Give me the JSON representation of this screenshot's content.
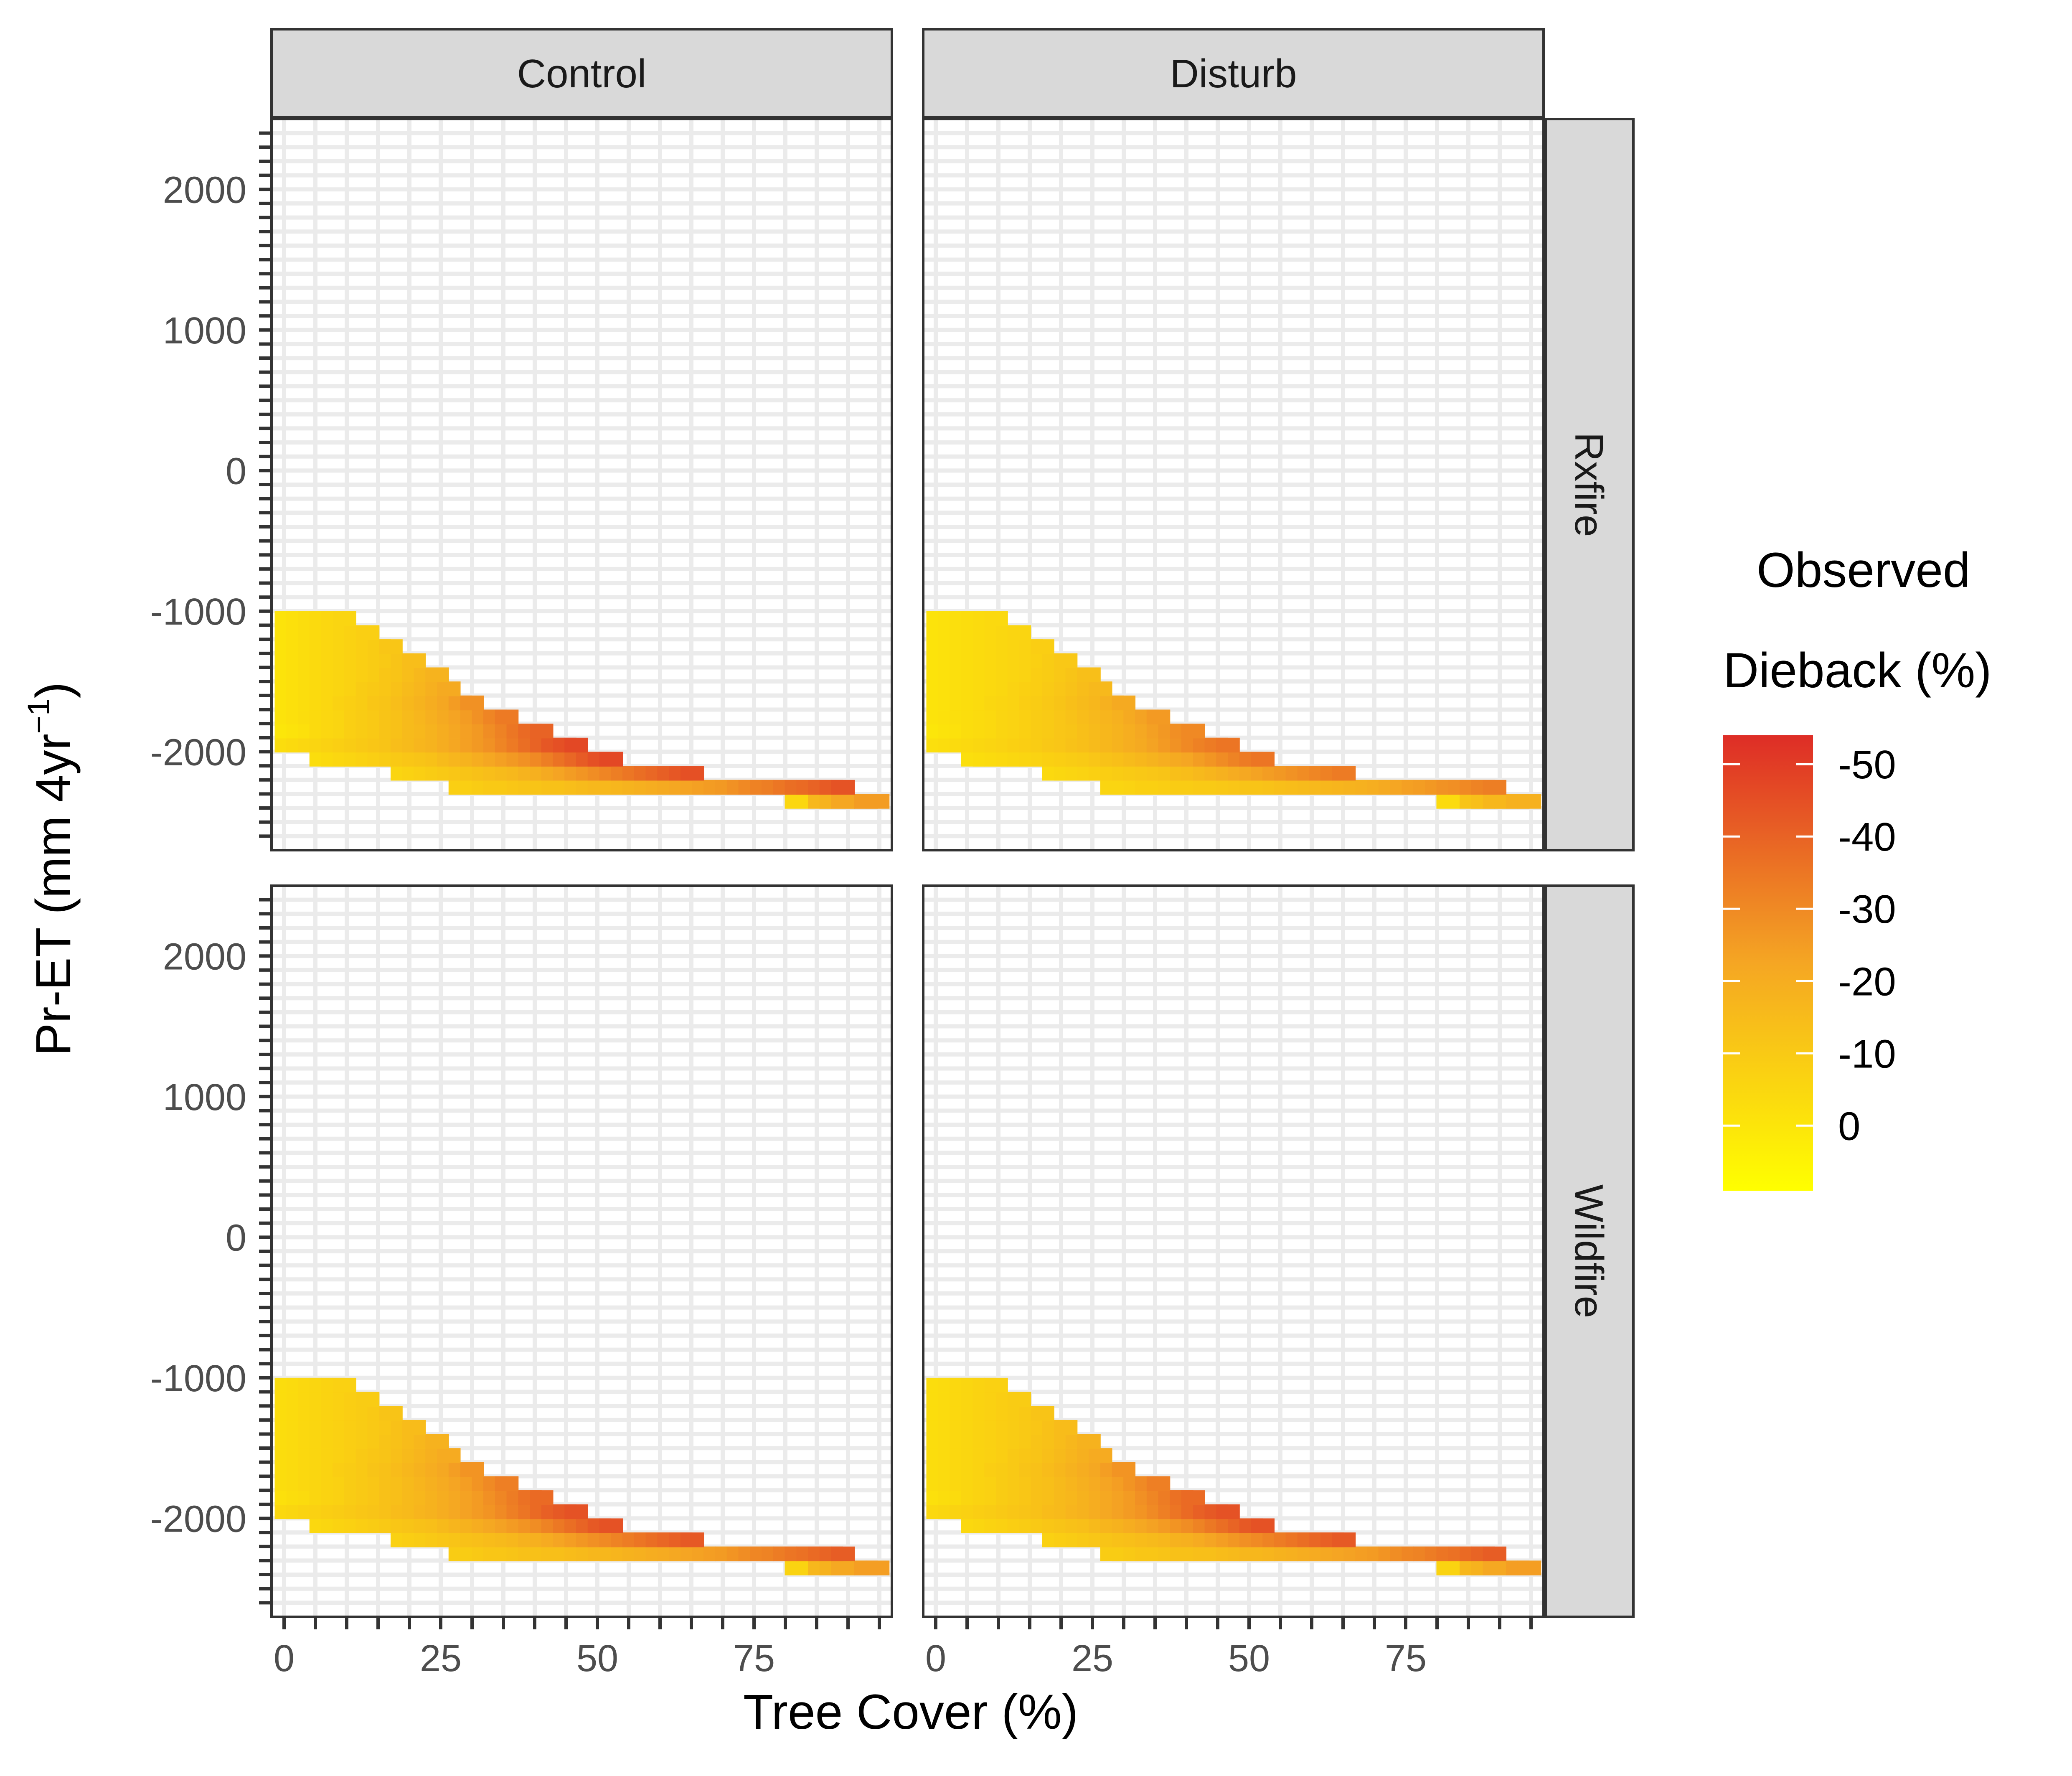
{
  "chart_data": {
    "type": "heatmap",
    "xlabel": "Tree Cover (%)",
    "ylabel": "Pr-ET (mm 4yr",
    "ylabel_sup": "−1",
    "ylabel_close": ")",
    "xlim": [
      -2,
      97
    ],
    "ylim": [
      -2700,
      2500
    ],
    "x_ticks": [
      0,
      25,
      50,
      75
    ],
    "x_tick_labels": [
      "0",
      "25",
      "50",
      "75"
    ],
    "y_ticks": [
      2000,
      1000,
      0,
      -1000,
      -2000
    ],
    "y_tick_labels": [
      "2000",
      "1000",
      "0",
      "-1000",
      "-2000"
    ],
    "x_bin_width": 5,
    "y_bin_width": 200,
    "col_strips": [
      "Control",
      "Disturb"
    ],
    "row_strips": [
      "Rxfire",
      "Wildfire"
    ],
    "legend": {
      "title_line1": "Observed",
      "title_line2": "Dieback (%)",
      "placement": "right",
      "ticks": [
        -50,
        -40,
        -30,
        -20,
        -10,
        0
      ],
      "tick_labels": [
        "-50",
        "-40",
        "-30",
        "-20",
        "-10",
        "0"
      ],
      "range": [
        -54,
        9
      ],
      "color_low": "#FFFF00",
      "color_mid": "#F5A623",
      "color_high": "#DE2D26"
    },
    "panels": [
      {
        "col": "Control",
        "row": "Rxfire",
        "y_start": -2500,
        "x_start": 0,
        "value_rows": [
          [
            null,
            null,
            null,
            null,
            null,
            null,
            null,
            null,
            null,
            null,
            null,
            null,
            null,
            null,
            null,
            null,
            null,
            null,
            null,
            null,
            null,
            null,
            null,
            null,
            null,
            null,
            null,
            null,
            null,
            null,
            null,
            null,
            null,
            null,
            null,
            null,
            null,
            null,
            null,
            null,
            null,
            null,
            null,
            null,
            null,
            null,
            null,
            null,
            null,
            null,
            null,
            null,
            null,
            null,
            null,
            null,
            null,
            null,
            null,
            null,
            null,
            null,
            null,
            null,
            null,
            null,
            null,
            null,
            -34,
            null,
            null,
            null,
            -30,
            -30,
            -30,
            -31,
            -31,
            -31,
            -31
          ],
          [
            null,
            null,
            null,
            null,
            null,
            null,
            null,
            null,
            null,
            null,
            null,
            null,
            null,
            null,
            null,
            null,
            null,
            null,
            null,
            null,
            null,
            null,
            null,
            null,
            null,
            null,
            null,
            null,
            null,
            null,
            null,
            null,
            null,
            null,
            null,
            null,
            null,
            null,
            null,
            null,
            null,
            null,
            null,
            null,
            -5,
            null,
            -16,
            -18,
            -22,
            -22,
            -25,
            -25,
            -28,
            -28,
            -28,
            -28,
            -30,
            -30,
            -30,
            -30,
            -32,
            -32,
            -32,
            -32,
            -35,
            -35,
            -35,
            -35,
            -36,
            -36
          ],
          [
            null,
            null,
            null,
            null,
            null,
            null,
            null,
            null,
            null,
            null,
            null,
            null,
            null,
            null,
            null,
            -8,
            -8,
            -9,
            -10,
            -10,
            -11,
            -12,
            -12,
            -13,
            -13,
            -14,
            -15,
            -16,
            -16,
            -17,
            -18,
            -19,
            -20,
            -21,
            -22,
            -23,
            -24,
            -25,
            -26,
            -28,
            -30,
            -32,
            -33,
            -35,
            -37,
            -38,
            -40,
            -42,
            -44
          ],
          [
            null,
            null,
            null,
            null,
            null,
            null,
            null,
            null,
            null,
            null,
            -6,
            -7,
            -8,
            -9,
            -10,
            -11,
            -12,
            -13,
            -14,
            -15,
            -16,
            -18,
            -19,
            -21,
            -23,
            -25,
            -27,
            -29,
            -31,
            -33,
            -35,
            -37,
            -39,
            -41,
            -43,
            -45
          ],
          [
            null,
            null,
            null,
            -3,
            -4,
            -5,
            -6,
            -7,
            -8,
            -9,
            -10,
            -11,
            -12,
            -13,
            -15,
            -17,
            -18,
            -20,
            -22,
            -24,
            -26,
            -28,
            -30,
            -33,
            -36,
            -39,
            -42,
            -45,
            -47
          ],
          [
            -3,
            -4,
            -5,
            -6,
            -7,
            -8,
            -9,
            -10,
            -11,
            -12,
            -14,
            -15,
            -17,
            -18,
            -20,
            -22,
            -24,
            -26,
            -28,
            -31,
            -34,
            -37,
            -40,
            -43,
            -45,
            -47
          ],
          [
            0,
            -1,
            -2,
            -4,
            -5,
            -6,
            -8,
            -9,
            -10,
            -12,
            -13,
            -15,
            -16,
            -18,
            -20,
            -22,
            -24,
            -26,
            -29,
            -32,
            -35,
            -38,
            -40
          ],
          [
            -1,
            -2,
            -3,
            -4,
            -5,
            -6,
            -8,
            -9,
            -10,
            -12,
            -13,
            -15,
            -17,
            -19,
            -21,
            -23,
            -25,
            -28,
            -31,
            -34
          ],
          [
            -1,
            -2,
            -3,
            -4,
            -5,
            -7,
            -8,
            -9,
            -11,
            -12,
            -14,
            -16,
            -18,
            -20,
            -22,
            -25,
            -28
          ],
          [
            -1,
            -2,
            -3,
            -4,
            -5,
            -6,
            -7,
            -9,
            -10,
            -11,
            -13,
            -15,
            -17,
            -19,
            -21
          ],
          [
            -1,
            -2,
            -3,
            -4,
            -5,
            -6,
            -7,
            -8,
            -9,
            -11,
            -12,
            -14,
            -16,
            -18
          ],
          [
            -1,
            -2,
            -3,
            -4,
            -5,
            -6,
            -7,
            -8,
            -9,
            -10,
            -12,
            -14
          ],
          [
            -1,
            -2,
            -3,
            -4,
            -5,
            -6,
            -7,
            -8,
            -9,
            -11
          ],
          [
            -1,
            -2,
            -3,
            -4,
            -5,
            -6,
            -7,
            -8
          ],
          [
            -1,
            -2,
            -3,
            -4,
            -5,
            -6
          ]
        ]
      }
    ]
  }
}
